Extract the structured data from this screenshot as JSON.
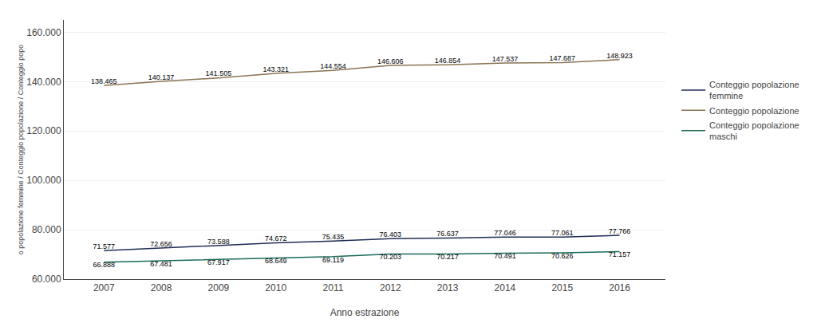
{
  "chart_data": {
    "type": "line",
    "xlabel": "Anno estrazione",
    "ylabel": "o popolazione femmine / Conteggio popolazione / Conteggio popo",
    "x": [
      2007,
      2008,
      2009,
      2010,
      2011,
      2012,
      2013,
      2014,
      2015,
      2016
    ],
    "xlim": [
      2006.3,
      2016.8
    ],
    "xticks": [
      2007,
      2008,
      2009,
      2010,
      2011,
      2012,
      2013,
      2014,
      2015,
      2016
    ],
    "ylim": [
      60000,
      165000
    ],
    "yticks": [
      {
        "value": 60000,
        "label": "60.000"
      },
      {
        "value": 80000,
        "label": "80.000"
      },
      {
        "value": 100000,
        "label": "100.000"
      },
      {
        "value": 120000,
        "label": "120.000"
      },
      {
        "value": 140000,
        "label": "140.000"
      },
      {
        "value": 160000,
        "label": "160.000"
      }
    ],
    "grid": true,
    "legend": "right",
    "data_labels": true,
    "series": [
      {
        "name": "Conteggio popolazione\nfemmine",
        "color": "#1F2D54",
        "values": [
          71577,
          72656,
          73588,
          74672,
          75435,
          76403,
          76637,
          77046,
          77061,
          77766
        ],
        "value_labels": [
          "71.577",
          "72.656",
          "73.588",
          "74.672",
          "75.435",
          "76.403",
          "76.637",
          "77.046",
          "77.061",
          "77.766"
        ]
      },
      {
        "name": "Conteggio popolazione",
        "color": "#8B7355",
        "values": [
          138465,
          140137,
          141505,
          143321,
          144554,
          146606,
          146854,
          147537,
          147687,
          148923
        ],
        "value_labels": [
          "138.465",
          "140.137",
          "141.505",
          "143.321",
          "144.554",
          "146.606",
          "146.854",
          "147.537",
          "147.687",
          "148.923"
        ]
      },
      {
        "name": "Conteggio popolazione\nmaschi",
        "color": "#1B6B5A",
        "values": [
          66888,
          67481,
          67917,
          68649,
          69119,
          70203,
          70217,
          70491,
          70626,
          71157
        ],
        "value_labels": [
          "66.888",
          "67.481",
          "67.917",
          "68.649",
          "69.119",
          "70.203",
          "70.217",
          "70.491",
          "70.626",
          "71.157"
        ]
      }
    ]
  }
}
